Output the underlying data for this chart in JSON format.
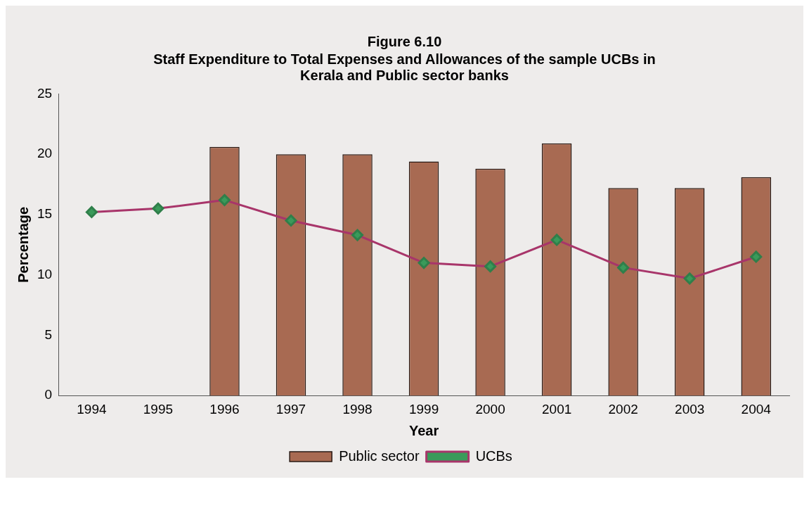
{
  "chart_data": {
    "type": "bar",
    "title": "Figure 6.10",
    "subtitle": "Staff Expenditure to Total Expenses and Allowances of the sample UCBs in Kerala and Public sector banks",
    "xlabel": "Year",
    "ylabel": "Percentage",
    "categories": [
      "1994",
      "1995",
      "1996",
      "1997",
      "1998",
      "1999",
      "2000",
      "2001",
      "2002",
      "2003",
      "2004"
    ],
    "series": [
      {
        "name": "Public sector",
        "color": "#a86a52",
        "values": [
          null,
          null,
          20.6,
          20.0,
          20.0,
          19.4,
          18.8,
          20.9,
          17.2,
          17.2,
          18.1
        ]
      },
      {
        "name": "UCBs",
        "type": "line",
        "color": "#a8356a",
        "values": [
          15.2,
          15.5,
          16.2,
          14.5,
          13.3,
          11.0,
          10.7,
          12.9,
          10.6,
          9.7,
          11.5
        ]
      }
    ],
    "marker": "diamond",
    "ylim": [
      0,
      25
    ],
    "yticks": [
      0,
      5,
      10,
      15,
      20,
      25
    ],
    "grid": false,
    "legend": "bottom"
  }
}
